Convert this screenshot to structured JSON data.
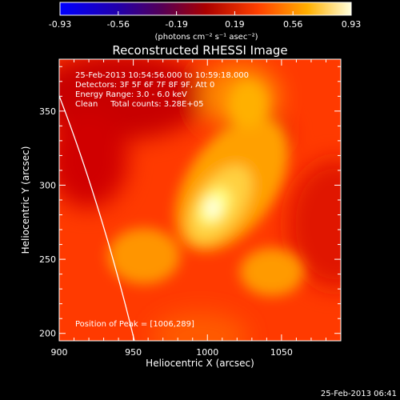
{
  "chart_data": {
    "type": "heatmap",
    "title": "Reconstructed RHESSI Image",
    "xlabel": "Heliocentric X (arcsec)",
    "ylabel": "Heliocentric Y (arcsec)",
    "xlim": [
      900,
      1090
    ],
    "ylim": [
      195,
      385
    ],
    "x_ticks": [
      "900",
      "950",
      "1000",
      "1050"
    ],
    "y_ticks": [
      "200",
      "250",
      "300",
      "350"
    ],
    "colorbar": {
      "min": -0.93,
      "max": 0.93,
      "ticks": [
        "-0.93",
        "-0.56",
        "-0.19",
        "0.19",
        "0.56",
        "0.93"
      ],
      "unit_label": "(photons cm⁻² s⁻¹ asec⁻²)"
    },
    "annotations": [
      "25-Feb-2013 10:54:56.000 to 10:59:18.000",
      "Detectors: 3F 5F 6F 7F 8F 9F, Att 0",
      "Energy Range: 3.0 - 6.0 keV",
      "Clean     Total counts: 3.28E+05"
    ],
    "peak_label": "Position of Peak = [1006,289]",
    "peak": [
      1006,
      289
    ],
    "footer": "25-Feb-2013 06:41"
  }
}
